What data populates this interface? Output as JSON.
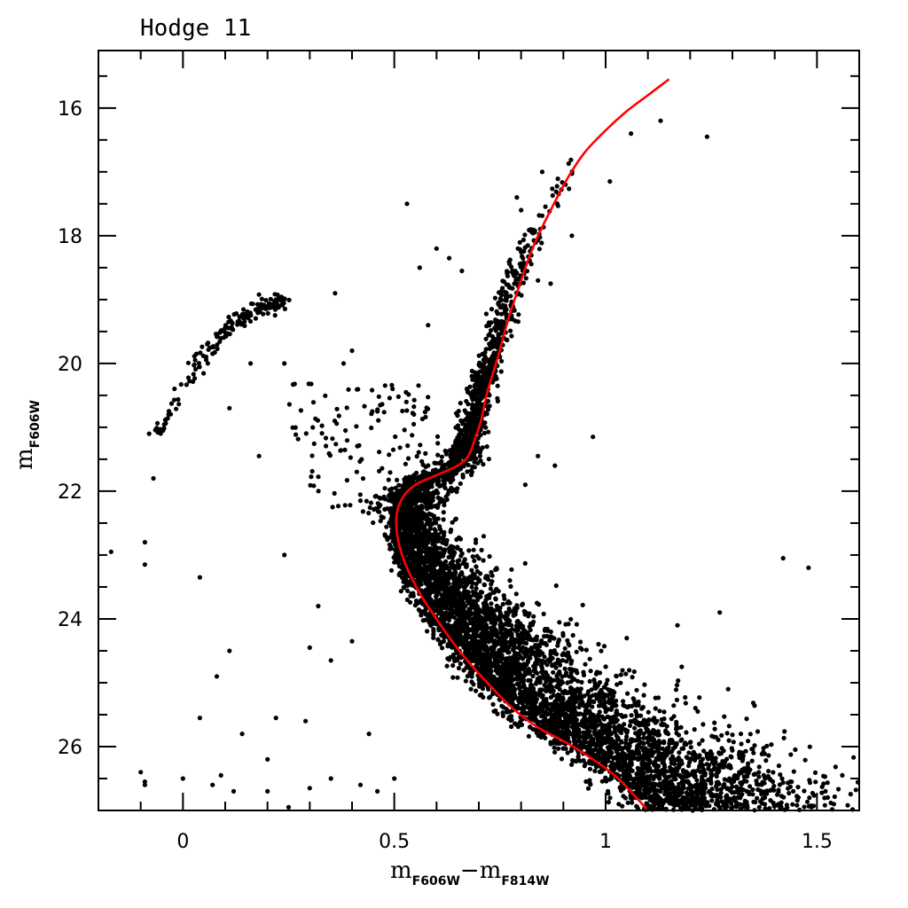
{
  "chart_data": {
    "type": "scatter",
    "title": "Hodge 11",
    "xlabel": {
      "main": "m",
      "sub1": "F606W",
      "minus": "−",
      "main2": "m",
      "sub2": "F814W"
    },
    "ylabel": {
      "main": "m",
      "sub": "F606W"
    },
    "xlim": [
      -0.2,
      1.6
    ],
    "ylim": [
      27.0,
      15.1
    ],
    "y_inverted": true,
    "grid": false,
    "x_ticks": [
      {
        "value": 0,
        "label": "0"
      },
      {
        "value": 0.5,
        "label": "0.5"
      },
      {
        "value": 1,
        "label": "1"
      },
      {
        "value": 1.5,
        "label": "1.5"
      }
    ],
    "y_ticks": [
      {
        "value": 16,
        "label": "16"
      },
      {
        "value": 18,
        "label": "18"
      },
      {
        "value": 20,
        "label": "20"
      },
      {
        "value": 22,
        "label": "22"
      },
      {
        "value": 24,
        "label": "24"
      },
      {
        "value": 26,
        "label": "26"
      }
    ],
    "point_color": "#000000",
    "isochrone_color": "#ff0000",
    "isochrone": [
      [
        1.15,
        15.55
      ],
      [
        1.1,
        15.8
      ],
      [
        1.05,
        16.05
      ],
      [
        1.0,
        16.35
      ],
      [
        0.95,
        16.7
      ],
      [
        0.91,
        17.1
      ],
      [
        0.87,
        17.6
      ],
      [
        0.83,
        18.15
      ],
      [
        0.8,
        18.7
      ],
      [
        0.77,
        19.3
      ],
      [
        0.745,
        19.9
      ],
      [
        0.72,
        20.45
      ],
      [
        0.705,
        20.9
      ],
      [
        0.69,
        21.2
      ],
      [
        0.675,
        21.45
      ],
      [
        0.65,
        21.6
      ],
      [
        0.6,
        21.75
      ],
      [
        0.55,
        21.9
      ],
      [
        0.52,
        22.1
      ],
      [
        0.505,
        22.4
      ],
      [
        0.51,
        22.8
      ],
      [
        0.53,
        23.2
      ],
      [
        0.565,
        23.65
      ],
      [
        0.61,
        24.1
      ],
      [
        0.66,
        24.55
      ],
      [
        0.72,
        25.0
      ],
      [
        0.78,
        25.4
      ],
      [
        0.84,
        25.7
      ],
      [
        0.91,
        25.95
      ],
      [
        0.97,
        26.2
      ],
      [
        1.03,
        26.5
      ],
      [
        1.1,
        27.0
      ]
    ],
    "stars": [
      [
        -0.17,
        22.95
      ],
      [
        -0.09,
        22.8
      ],
      [
        -0.09,
        23.15
      ],
      [
        -0.07,
        21.8
      ],
      [
        -0.08,
        21.1
      ],
      [
        -0.1,
        26.4
      ],
      [
        -0.09,
        26.55
      ],
      [
        -0.09,
        26.6
      ],
      [
        0.0,
        26.5
      ],
      [
        0.04,
        23.35
      ],
      [
        0.04,
        25.55
      ],
      [
        0.07,
        26.6
      ],
      [
        0.08,
        24.9
      ],
      [
        0.09,
        26.45
      ],
      [
        0.11,
        24.5
      ],
      [
        0.11,
        20.7
      ],
      [
        0.12,
        26.7
      ],
      [
        0.14,
        25.8
      ],
      [
        0.16,
        20.0
      ],
      [
        0.18,
        21.45
      ],
      [
        0.2,
        26.2
      ],
      [
        0.2,
        26.7
      ],
      [
        0.22,
        25.55
      ],
      [
        0.24,
        23.0
      ],
      [
        0.24,
        20.0
      ],
      [
        0.25,
        26.95
      ],
      [
        0.3,
        24.45
      ],
      [
        0.3,
        26.65
      ],
      [
        0.29,
        25.6
      ],
      [
        0.32,
        23.8
      ],
      [
        0.35,
        24.65
      ],
      [
        0.35,
        26.5
      ],
      [
        0.36,
        18.9
      ],
      [
        0.38,
        20.0
      ],
      [
        0.4,
        19.8
      ],
      [
        0.4,
        24.35
      ],
      [
        0.42,
        26.6
      ],
      [
        0.44,
        25.8
      ],
      [
        0.46,
        26.7
      ],
      [
        0.5,
        26.5
      ],
      [
        0.53,
        17.5
      ],
      [
        0.56,
        18.5
      ],
      [
        0.6,
        18.2
      ],
      [
        0.58,
        19.4
      ],
      [
        0.79,
        17.4
      ],
      [
        0.8,
        17.6
      ],
      [
        0.82,
        18.4
      ],
      [
        0.84,
        18.7
      ],
      [
        0.85,
        17.0
      ],
      [
        0.87,
        18.75
      ],
      [
        0.92,
        18.0
      ],
      [
        0.97,
        21.15
      ],
      [
        1.01,
        17.15
      ],
      [
        1.06,
        16.4
      ],
      [
        1.13,
        16.2
      ],
      [
        1.24,
        16.45
      ],
      [
        1.42,
        23.05
      ],
      [
        1.48,
        23.2
      ],
      [
        1.27,
        23.9
      ],
      [
        1.17,
        24.1
      ],
      [
        1.18,
        24.75
      ],
      [
        1.29,
        25.1
      ],
      [
        1.32,
        25.8
      ],
      [
        1.35,
        26.1
      ],
      [
        1.41,
        26.3
      ],
      [
        1.44,
        26.55
      ],
      [
        1.52,
        26.7
      ],
      [
        1.54,
        26.9
      ],
      [
        1.56,
        26.45
      ],
      [
        1.05,
        24.3
      ],
      [
        0.84,
        21.45
      ],
      [
        0.88,
        21.6
      ],
      [
        0.81,
        21.9
      ],
      [
        0.63,
        18.35
      ],
      [
        0.66,
        18.55
      ]
    ]
  }
}
